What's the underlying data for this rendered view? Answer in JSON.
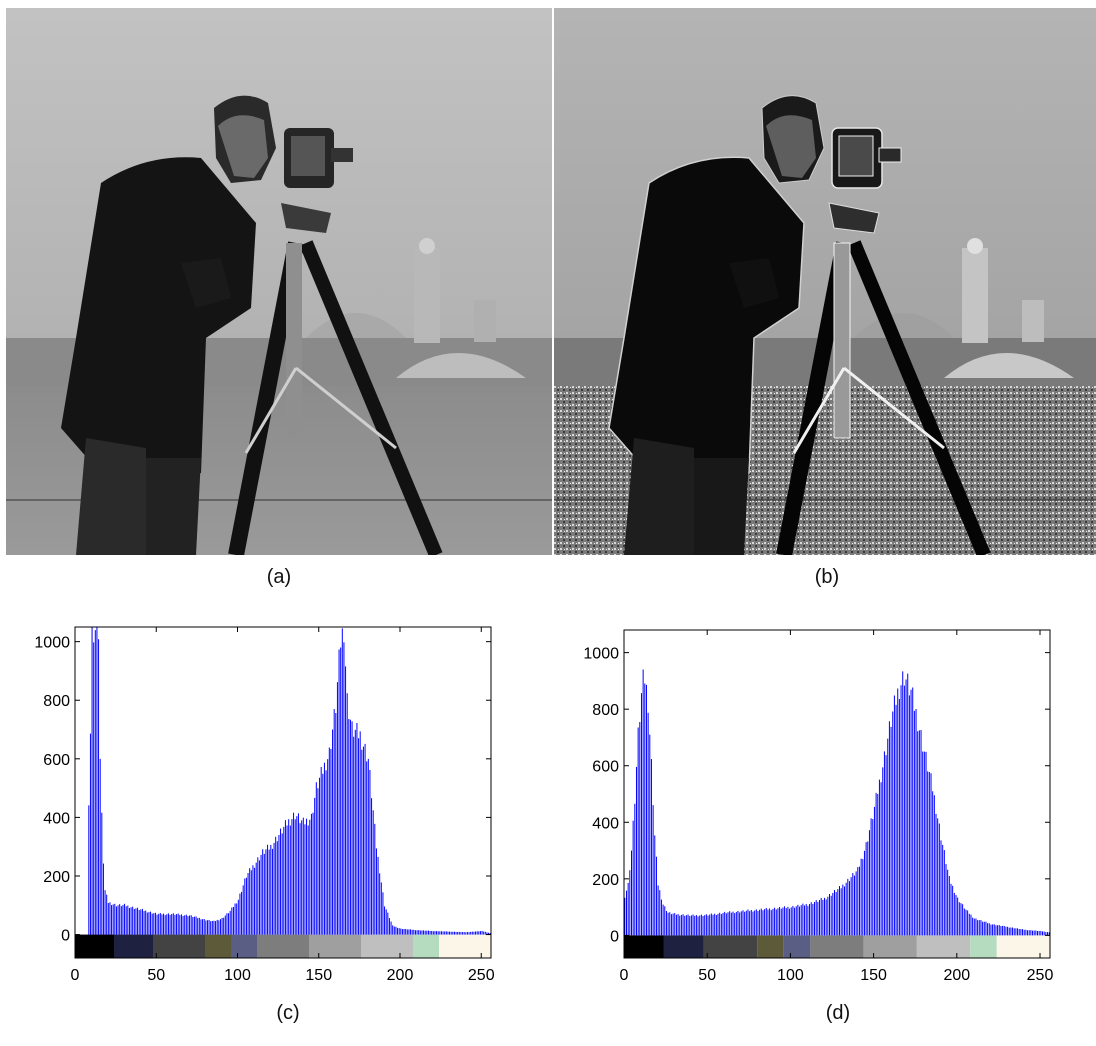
{
  "captions": {
    "a": "(a)",
    "b": "(b)",
    "c": "(c)",
    "d": "(d)"
  },
  "photos": {
    "a": {
      "subject": "cameraman photograph, grayscale, original",
      "style": "soft"
    },
    "b": {
      "subject": "cameraman photograph, grayscale, enhanced",
      "style": "sharpened"
    }
  },
  "chart_data": [
    {
      "id": "c",
      "type": "bar",
      "title": "",
      "xlabel": "",
      "ylabel": "",
      "xlim": [
        0,
        256
      ],
      "ylim": [
        -80,
        1050
      ],
      "xticks": [
        0,
        50,
        100,
        150,
        200,
        250
      ],
      "yticks": [
        0,
        200,
        400,
        600,
        800,
        1000
      ],
      "bar_color": "#0000ff",
      "colorbar_colors": [
        "#000000",
        "#1f2140",
        "#434343",
        "#5c5a38",
        "#5a5e84",
        "#7d7d7d",
        "#9f9f9f",
        "#bfbfbf",
        "#b6dcc0",
        "#fbf6e8"
      ],
      "colorbar_bounds": [
        0,
        24,
        48,
        80,
        96,
        112,
        144,
        176,
        208,
        224,
        256
      ],
      "anchors": [
        [
          0,
          0
        ],
        [
          7,
          0
        ],
        [
          8,
          420
        ],
        [
          9,
          700
        ],
        [
          10,
          1050
        ],
        [
          11,
          1050
        ],
        [
          12,
          1050
        ],
        [
          13,
          1050
        ],
        [
          14,
          1050
        ],
        [
          15,
          600
        ],
        [
          16,
          400
        ],
        [
          17,
          250
        ],
        [
          18,
          150
        ],
        [
          20,
          110
        ],
        [
          25,
          100
        ],
        [
          30,
          100
        ],
        [
          40,
          85
        ],
        [
          50,
          70
        ],
        [
          60,
          70
        ],
        [
          70,
          65
        ],
        [
          80,
          50
        ],
        [
          85,
          45
        ],
        [
          90,
          55
        ],
        [
          95,
          80
        ],
        [
          100,
          120
        ],
        [
          105,
          200
        ],
        [
          110,
          240
        ],
        [
          115,
          280
        ],
        [
          120,
          300
        ],
        [
          125,
          340
        ],
        [
          130,
          380
        ],
        [
          135,
          410
        ],
        [
          140,
          380
        ],
        [
          145,
          400
        ],
        [
          148,
          500
        ],
        [
          152,
          560
        ],
        [
          156,
          620
        ],
        [
          160,
          780
        ],
        [
          163,
          1000
        ],
        [
          165,
          1050
        ],
        [
          167,
          800
        ],
        [
          170,
          700
        ],
        [
          175,
          680
        ],
        [
          180,
          600
        ],
        [
          185,
          300
        ],
        [
          190,
          100
        ],
        [
          195,
          30
        ],
        [
          200,
          20
        ],
        [
          210,
          15
        ],
        [
          220,
          12
        ],
        [
          230,
          10
        ],
        [
          240,
          8
        ],
        [
          250,
          12
        ],
        [
          255,
          5
        ]
      ]
    },
    {
      "id": "d",
      "type": "bar",
      "title": "",
      "xlabel": "",
      "ylabel": "",
      "xlim": [
        0,
        256
      ],
      "ylim": [
        -80,
        1080
      ],
      "xticks": [
        0,
        50,
        100,
        150,
        200,
        250
      ],
      "yticks": [
        0,
        200,
        400,
        600,
        800,
        1000
      ],
      "bar_color": "#0000ff",
      "colorbar_colors": [
        "#000000",
        "#1f2140",
        "#434343",
        "#5c5a38",
        "#5a5e84",
        "#7d7d7d",
        "#9f9f9f",
        "#bfbfbf",
        "#b6dcc0",
        "#fbf6e8"
      ],
      "colorbar_bounds": [
        0,
        24,
        48,
        80,
        96,
        112,
        144,
        176,
        208,
        224,
        256
      ],
      "anchors": [
        [
          0,
          140
        ],
        [
          2,
          180
        ],
        [
          4,
          300
        ],
        [
          6,
          480
        ],
        [
          8,
          700
        ],
        [
          10,
          840
        ],
        [
          11,
          990
        ],
        [
          12,
          900
        ],
        [
          14,
          820
        ],
        [
          16,
          600
        ],
        [
          18,
          350
        ],
        [
          20,
          180
        ],
        [
          23,
          110
        ],
        [
          26,
          80
        ],
        [
          30,
          75
        ],
        [
          40,
          70
        ],
        [
          50,
          72
        ],
        [
          60,
          80
        ],
        [
          70,
          85
        ],
        [
          80,
          90
        ],
        [
          90,
          95
        ],
        [
          100,
          100
        ],
        [
          110,
          110
        ],
        [
          120,
          130
        ],
        [
          130,
          170
        ],
        [
          140,
          230
        ],
        [
          145,
          320
        ],
        [
          150,
          450
        ],
        [
          155,
          600
        ],
        [
          160,
          760
        ],
        [
          165,
          880
        ],
        [
          168,
          920
        ],
        [
          172,
          860
        ],
        [
          176,
          760
        ],
        [
          180,
          650
        ],
        [
          185,
          520
        ],
        [
          190,
          350
        ],
        [
          195,
          200
        ],
        [
          200,
          130
        ],
        [
          205,
          90
        ],
        [
          210,
          60
        ],
        [
          220,
          40
        ],
        [
          230,
          30
        ],
        [
          240,
          20
        ],
        [
          250,
          15
        ],
        [
          256,
          10
        ]
      ]
    }
  ]
}
